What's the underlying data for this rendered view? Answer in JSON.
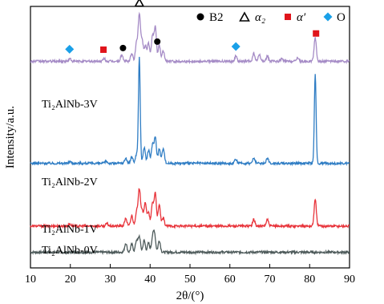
{
  "chart_data": {
    "type": "line",
    "xlabel": "2θ/(°)",
    "ylabel": "Intensity/a.u.",
    "xlim": [
      10,
      90
    ],
    "xticks": [
      10,
      20,
      30,
      40,
      50,
      60,
      70,
      80,
      90
    ],
    "yticks_shown": false,
    "grid": false,
    "legend_position": "top",
    "legend": [
      {
        "marker": "circle",
        "color": "#000000",
        "label": "B2"
      },
      {
        "marker": "triangle-open",
        "color": "#000000",
        "label": "α₂"
      },
      {
        "marker": "square",
        "color": "#e0141b",
        "label": "α′"
      },
      {
        "marker": "diamond",
        "color": "#1aa0e8",
        "label": "O"
      }
    ],
    "series": [
      {
        "name": "Ti₂AlNb-0V",
        "color": "#4e5b5b",
        "baseline": 0.06,
        "peaks": [
          [
            33.9,
            0.035
          ],
          [
            35.4,
            0.03
          ],
          [
            36.6,
            0.045
          ],
          [
            37.3,
            0.06
          ],
          [
            38.5,
            0.045
          ],
          [
            39.6,
            0.035
          ],
          [
            40.6,
            0.05
          ],
          [
            41.1,
            0.07
          ],
          [
            42.3,
            0.045
          ]
        ]
      },
      {
        "name": "Ti₂AlNb-1V",
        "color": "#e8343b",
        "baseline": 0.16,
        "peaks": [
          [
            19.9,
            0.008
          ],
          [
            29.2,
            0.01
          ],
          [
            33.9,
            0.03
          ],
          [
            35.4,
            0.04
          ],
          [
            36.6,
            0.055
          ],
          [
            37.3,
            0.14
          ],
          [
            38.0,
            0.06
          ],
          [
            38.8,
            0.09
          ],
          [
            39.6,
            0.05
          ],
          [
            40.6,
            0.085
          ],
          [
            41.3,
            0.125
          ],
          [
            42.3,
            0.08
          ],
          [
            43.3,
            0.03
          ],
          [
            66.0,
            0.025
          ],
          [
            69.4,
            0.025
          ],
          [
            81.4,
            0.1
          ]
        ]
      },
      {
        "name": "Ti₂AlNb-2V",
        "color": "#2f7dc4",
        "baseline": 0.4,
        "peaks": [
          [
            19.9,
            0.007
          ],
          [
            29.0,
            0.008
          ],
          [
            33.9,
            0.02
          ],
          [
            35.4,
            0.025
          ],
          [
            36.6,
            0.035
          ],
          [
            37.3,
            0.405
          ],
          [
            38.5,
            0.06
          ],
          [
            39.6,
            0.05
          ],
          [
            40.6,
            0.07
          ],
          [
            41.3,
            0.1
          ],
          [
            42.3,
            0.055
          ],
          [
            43.3,
            0.06
          ],
          [
            61.5,
            0.015
          ],
          [
            66.0,
            0.02
          ],
          [
            69.4,
            0.02
          ],
          [
            81.4,
            0.34
          ]
        ]
      },
      {
        "name": "Ti₂AlNb-3V",
        "color": "#a58bc6",
        "baseline": 0.79,
        "peaks": [
          [
            19.9,
            0.01
          ],
          [
            28.5,
            0.01
          ],
          [
            32.9,
            0.025
          ],
          [
            35.4,
            0.03
          ],
          [
            36.6,
            0.07
          ],
          [
            37.3,
            0.18
          ],
          [
            38.0,
            0.08
          ],
          [
            38.8,
            0.06
          ],
          [
            39.6,
            0.07
          ],
          [
            40.6,
            0.1
          ],
          [
            41.3,
            0.13
          ],
          [
            42.3,
            0.06
          ],
          [
            43.3,
            0.04
          ],
          [
            61.5,
            0.02
          ],
          [
            66.0,
            0.03
          ],
          [
            67.4,
            0.025
          ],
          [
            69.4,
            0.02
          ],
          [
            73.0,
            0.01
          ],
          [
            77.0,
            0.015
          ],
          [
            81.4,
            0.09
          ]
        ]
      }
    ],
    "phase_markers": [
      {
        "phase": "O",
        "x": 19.8
      },
      {
        "phase": "α′",
        "x": 28.3
      },
      {
        "phase": "B2",
        "x": 33.2
      },
      {
        "phase": "α₂",
        "x": 37.3
      },
      {
        "phase": "B2",
        "x": 41.8
      },
      {
        "phase": "O",
        "x": 61.5
      },
      {
        "phase": "α′",
        "x": 81.6
      }
    ]
  }
}
